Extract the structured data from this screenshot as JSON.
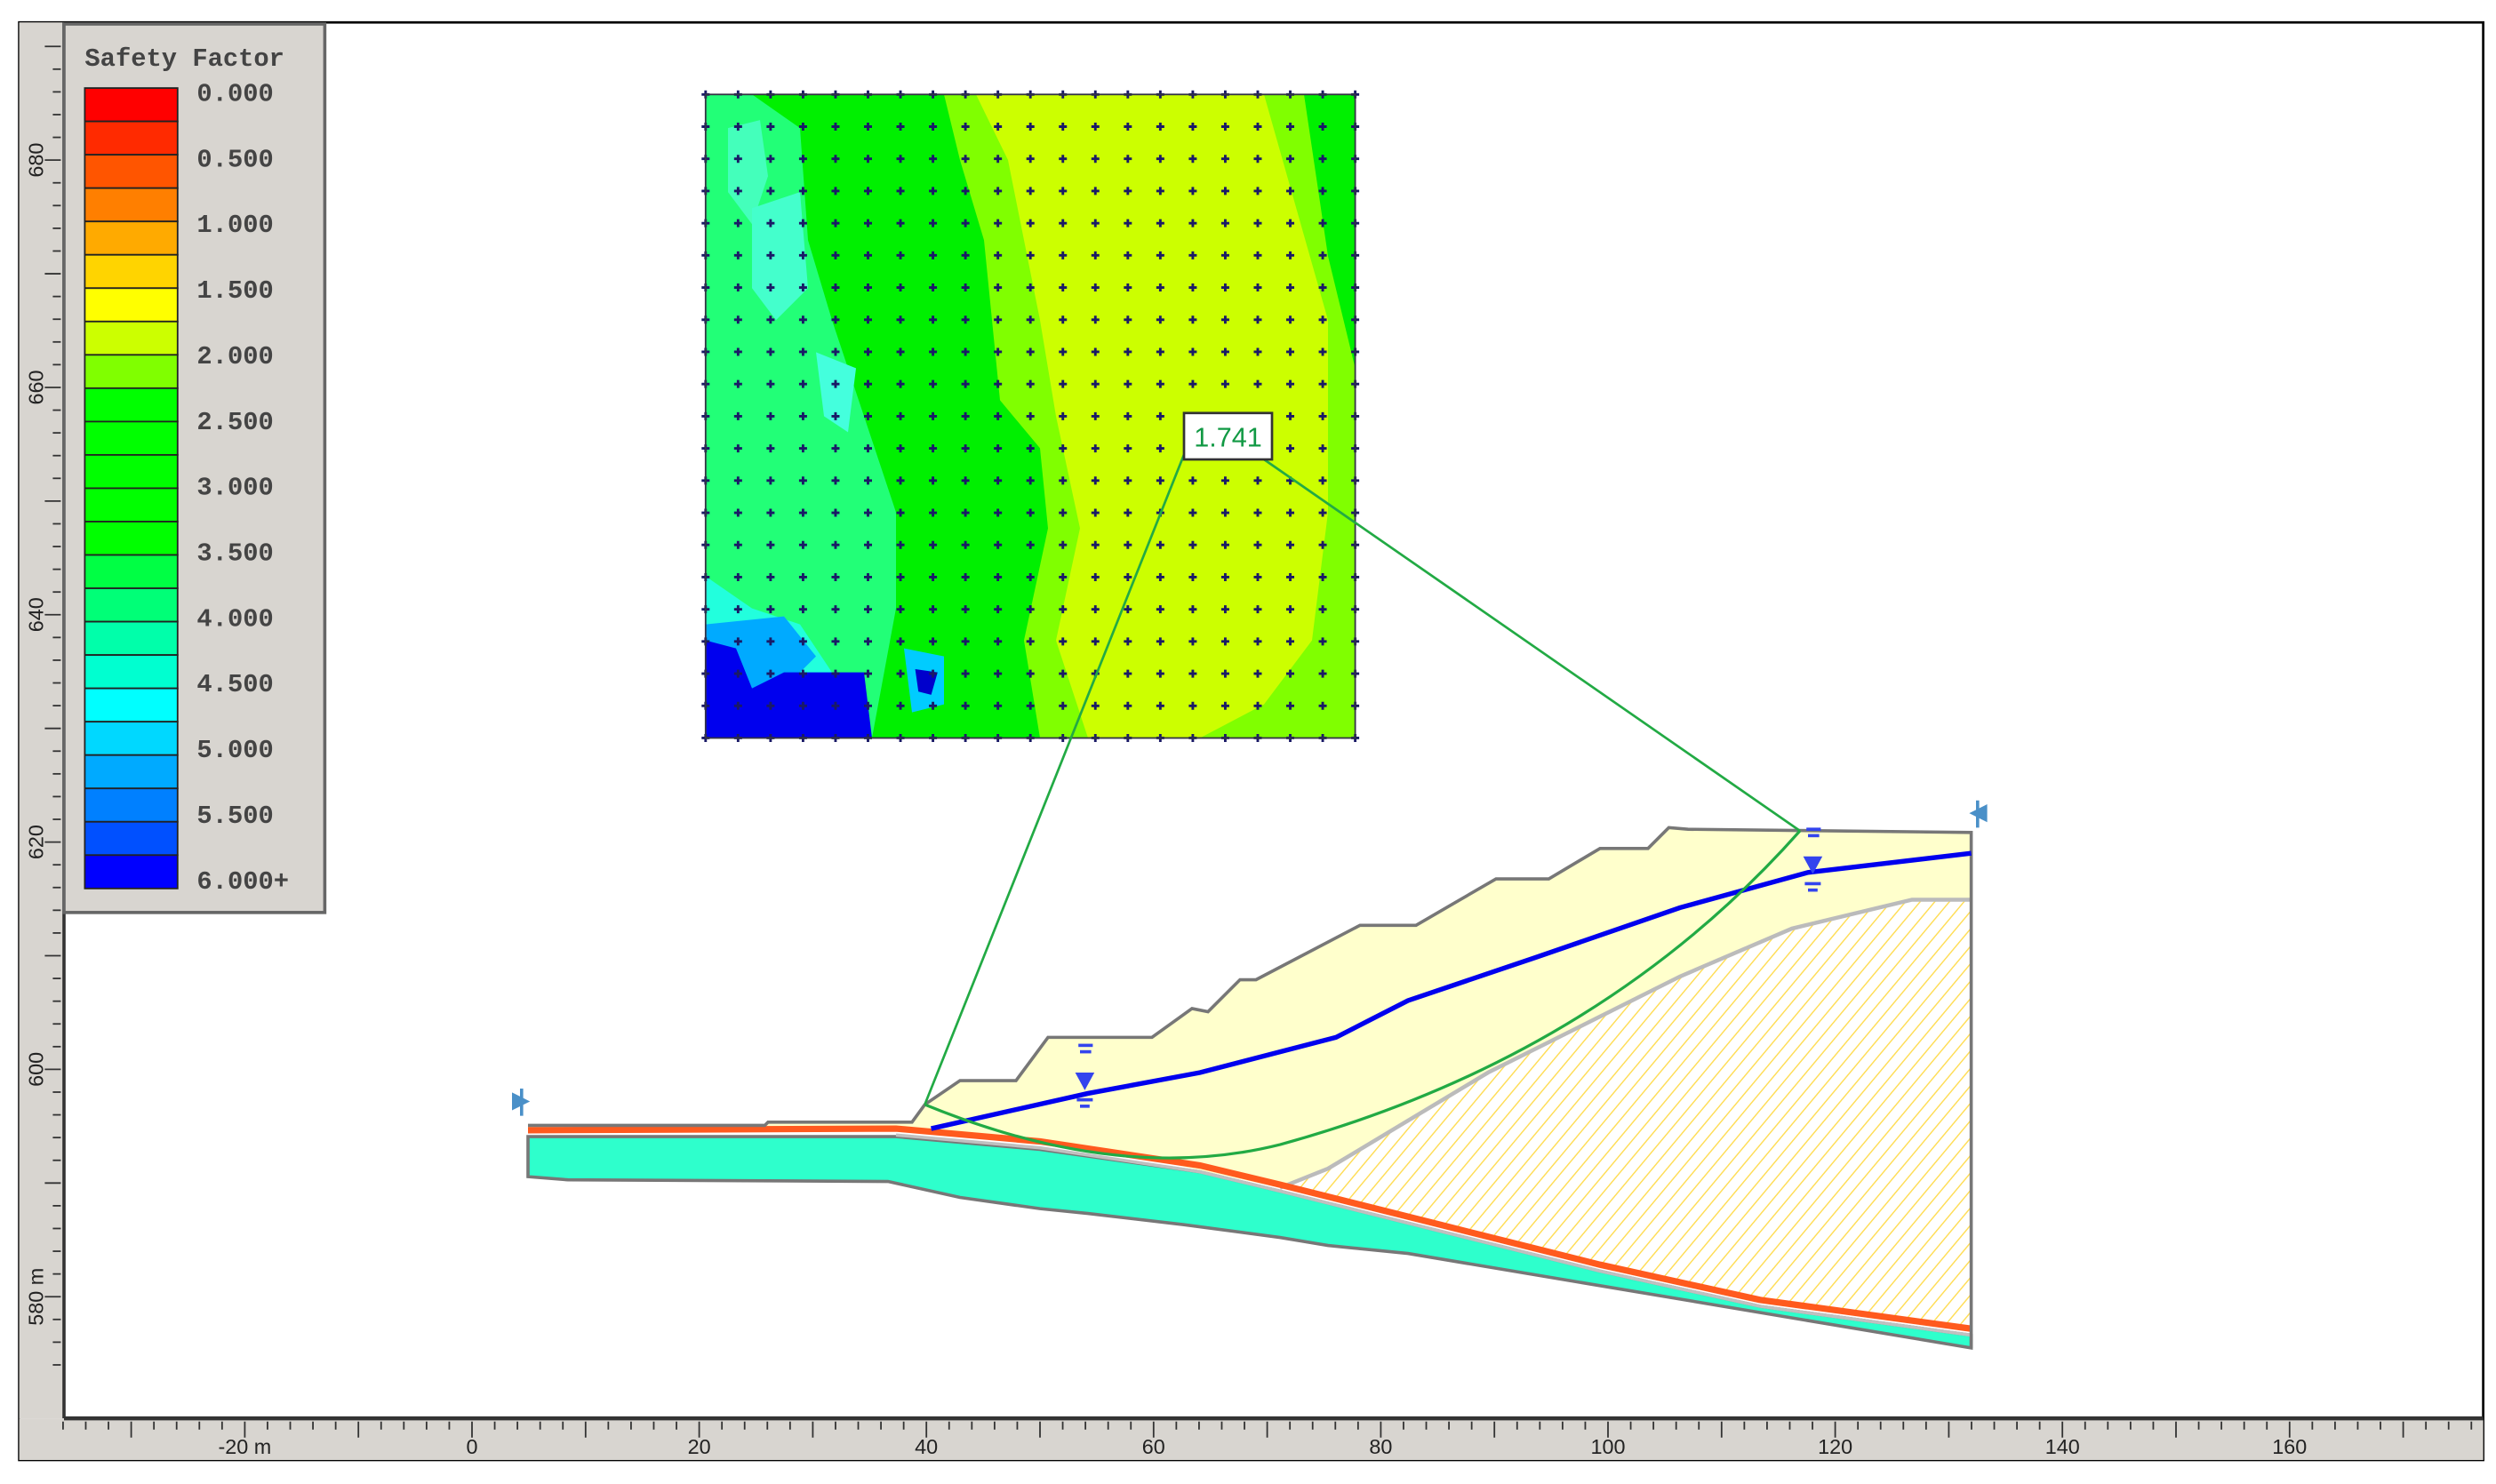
{
  "chart_data": {
    "type": "heatmap",
    "title": "",
    "legend": {
      "title": "Safety Factor",
      "placement": "top-left",
      "labels": [
        "0.000",
        "0.500",
        "1.000",
        "1.500",
        "2.000",
        "2.500",
        "3.000",
        "3.500",
        "4.000",
        "4.500",
        "5.000",
        "5.500",
        "6.000+"
      ],
      "colors": [
        "#ff0000",
        "#ff2a00",
        "#ff5500",
        "#ff7f00",
        "#ffaa00",
        "#ffd400",
        "#ffff00",
        "#ccff00",
        "#80ff00",
        "#00ff00",
        "#00ff00",
        "#00ff00",
        "#00ff00",
        "#00ff00",
        "#00ff44",
        "#00ff77",
        "#00ffaa",
        "#00ffd0",
        "#00ffff",
        "#00d8ff",
        "#00aaff",
        "#0080ff",
        "#0050ff",
        "#0000ff"
      ]
    },
    "x_axis": {
      "ticks": [
        -20,
        0,
        20,
        40,
        60,
        80,
        100,
        120,
        140,
        160
      ],
      "tick_labels": [
        "-20 m",
        "0",
        "20",
        "40",
        "60",
        "80",
        "100",
        "120",
        "140",
        "160"
      ]
    },
    "y_axis": {
      "ticks": [
        680,
        660,
        640,
        620,
        600,
        580
      ],
      "tick_labels": [
        "680",
        "660",
        "640",
        "620",
        "600",
        "580 m"
      ]
    },
    "critical_surface": {
      "safety_factor_label": "1.741"
    },
    "colors": {
      "slip_surface": "#22aa44",
      "water_table": "#0000ee",
      "upper_soil": "#ffffcc",
      "weak_layer": "#ff5a1e",
      "base_layer": "#2effcc",
      "hatched_zone": "#ffdd55"
    }
  }
}
